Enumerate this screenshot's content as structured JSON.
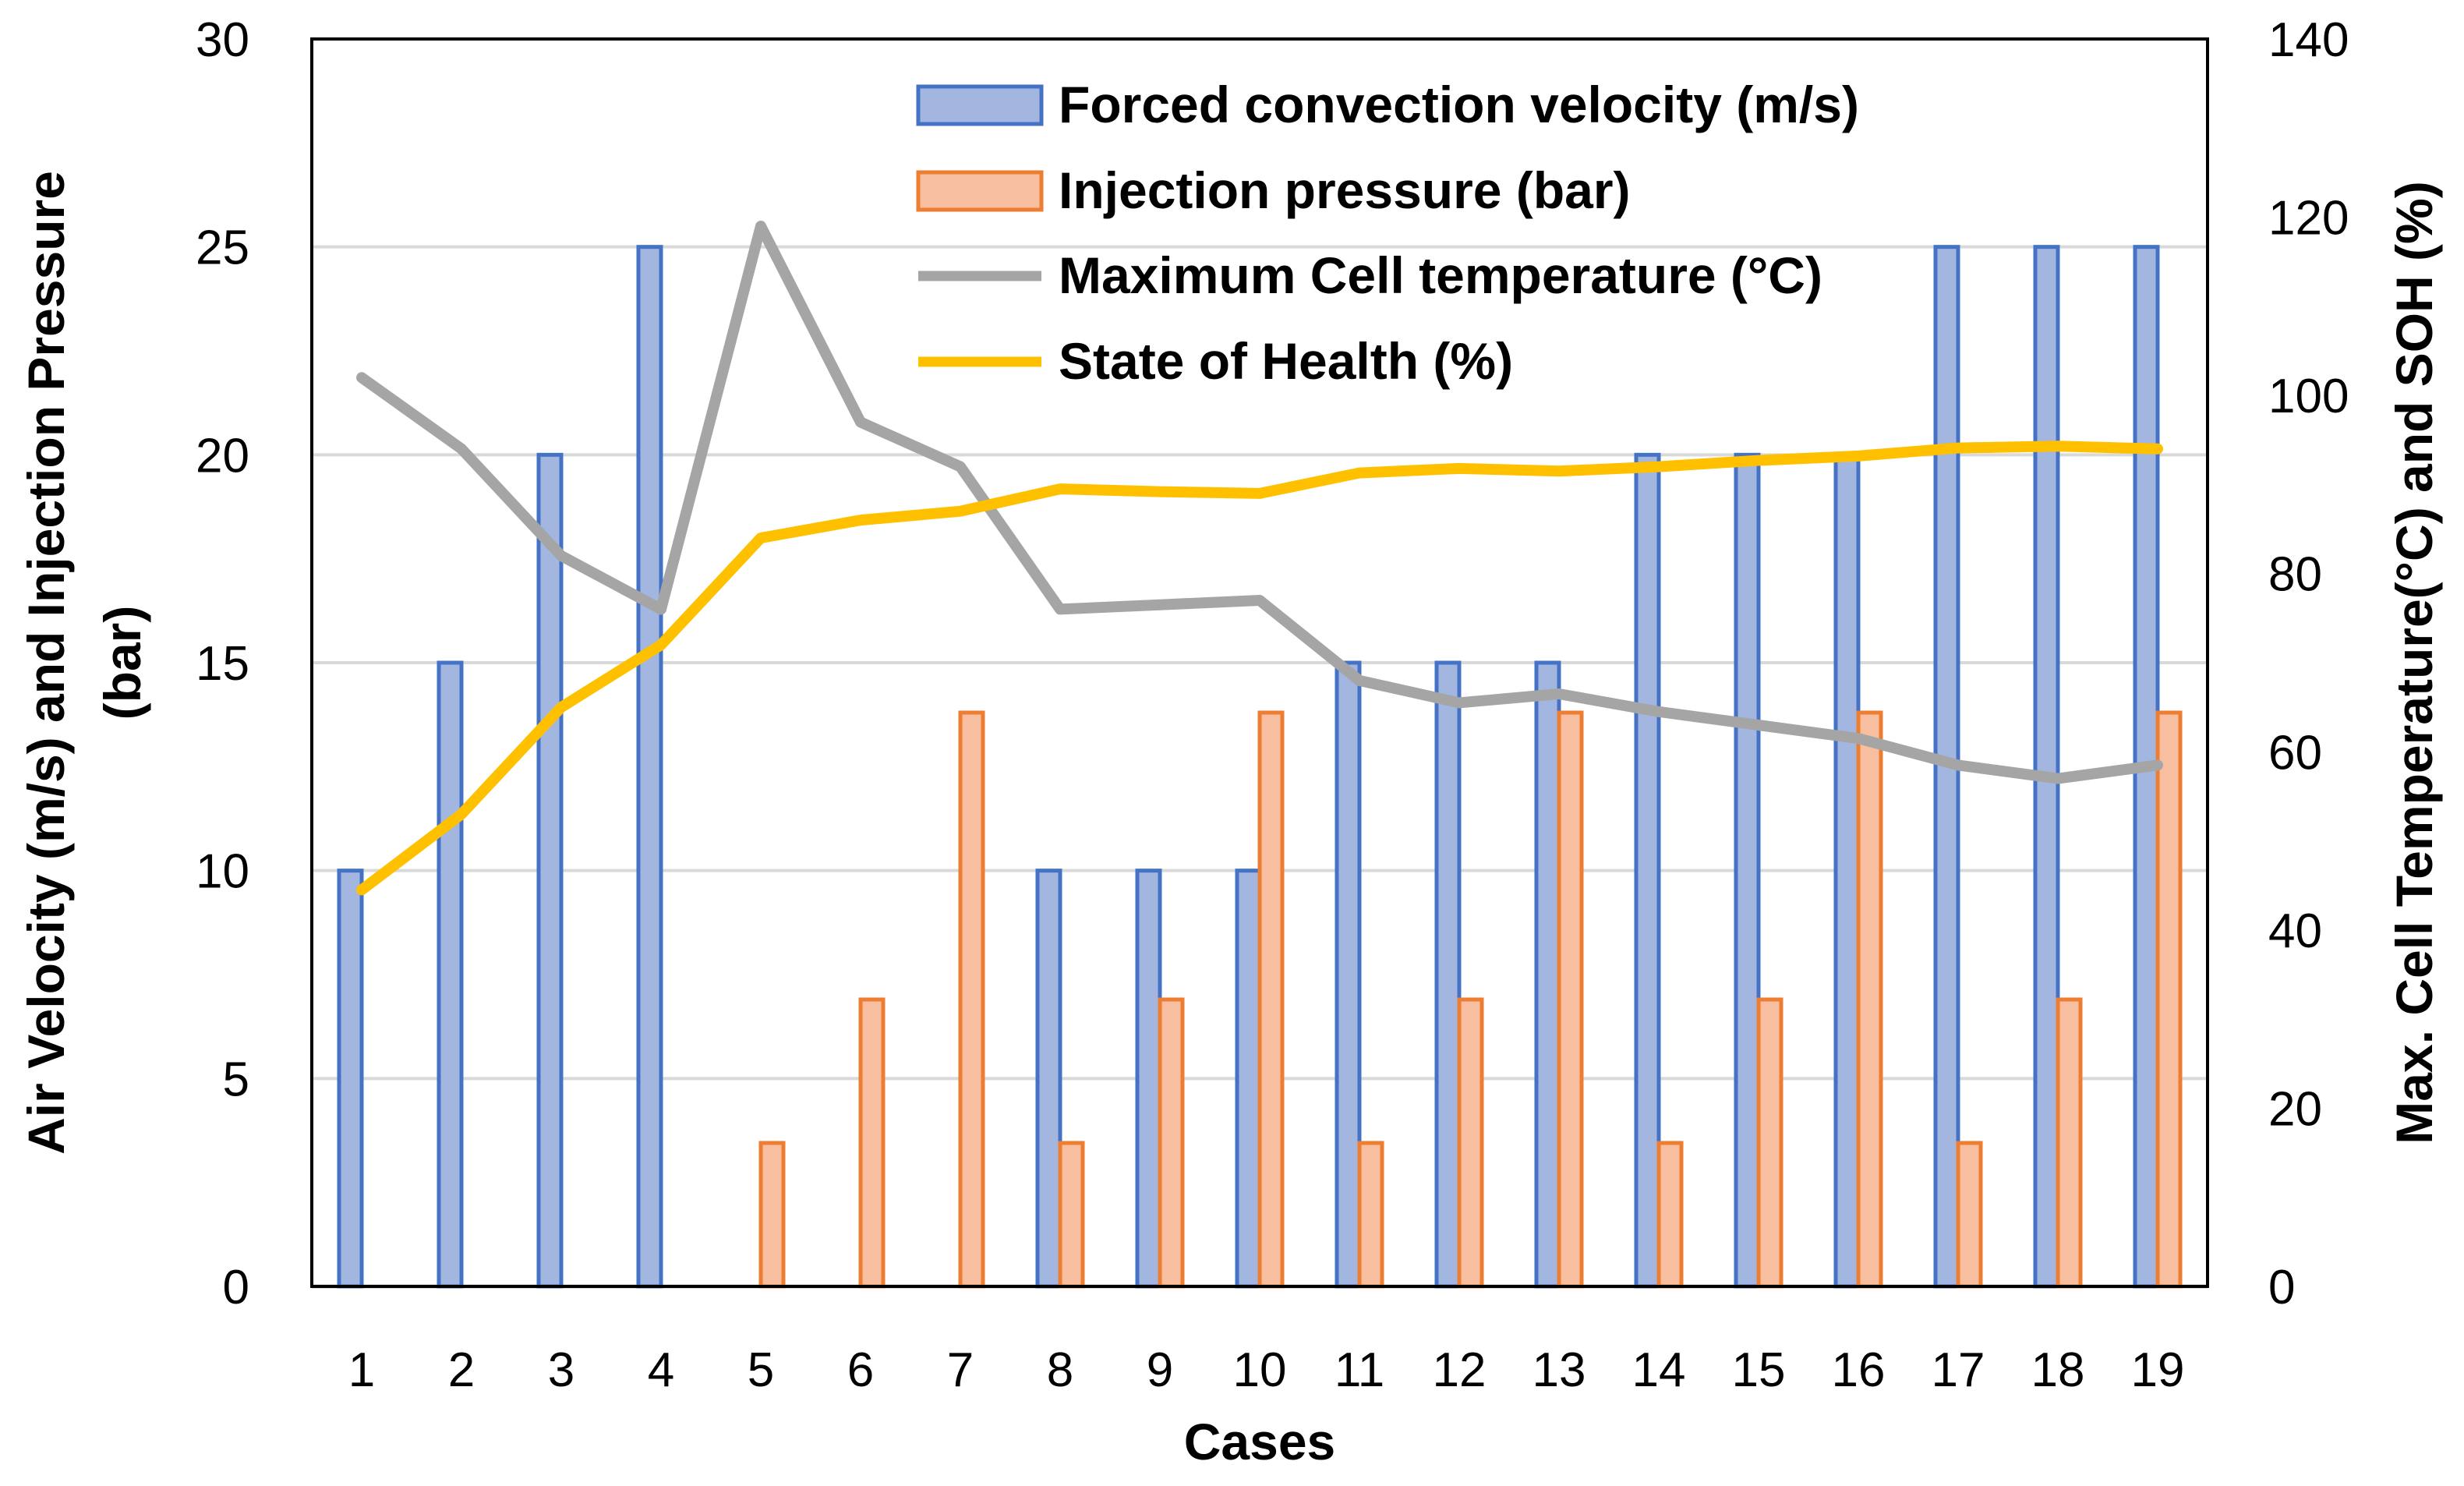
{
  "chart_data": {
    "type": "bar",
    "title": "",
    "xlabel": "Cases",
    "ylabel": "Air Velocity (m/s) and Injection Pressure (bar)",
    "ylabel_lines": [
      "Air Velocity (m/s) and Injection Pressure",
      "(bar)"
    ],
    "y2label": "Max. Cell Temperature(°C) and SOH (%)",
    "categories": [
      "1",
      "2",
      "3",
      "4",
      "5",
      "6",
      "7",
      "8",
      "9",
      "10",
      "11",
      "12",
      "13",
      "14",
      "15",
      "16",
      "17",
      "18",
      "19"
    ],
    "ylim": [
      0,
      30
    ],
    "yticks": [
      0,
      5,
      10,
      15,
      20,
      25,
      30
    ],
    "y2lim": [
      0,
      140
    ],
    "y2ticks": [
      0,
      20,
      40,
      60,
      80,
      100,
      120,
      140
    ],
    "grid": true,
    "legend_position": "top-right",
    "series": [
      {
        "name": "Forced convection velocity (m/s)",
        "kind": "bar",
        "axis": "left",
        "color": "#4472C4",
        "fill": "#a3b6e0",
        "values": [
          10,
          15,
          20,
          25,
          0,
          0,
          0,
          10,
          10,
          10,
          15,
          15,
          15,
          20,
          20,
          20,
          25,
          25,
          25
        ]
      },
      {
        "name": "Injection pressure (bar)",
        "kind": "bar",
        "axis": "left",
        "color": "#ED7D31",
        "fill": "#f8bea0",
        "values": [
          0,
          0,
          0,
          0,
          3.45,
          6.9,
          13.8,
          3.45,
          6.9,
          13.8,
          3.45,
          6.9,
          13.8,
          3.45,
          6.9,
          13.8,
          3.45,
          6.9,
          13.8
        ]
      },
      {
        "name": "Maximum Cell temperature (°C)",
        "kind": "line",
        "axis": "right",
        "color": "#A5A5A5",
        "values": [
          102,
          94,
          82,
          76,
          119,
          97,
          92,
          76,
          76.5,
          77,
          68,
          65.5,
          66.5,
          64.5,
          63,
          61.5,
          58.5,
          57,
          58.5
        ]
      },
      {
        "name": "State of Health (%)",
        "kind": "line",
        "axis": "right",
        "color": "#FFC000",
        "values": [
          44.5,
          53,
          65,
          72,
          84,
          86,
          87,
          89.5,
          89.2,
          89,
          91.3,
          91.8,
          91.5,
          92,
          92.7,
          93.2,
          94.1,
          94.3,
          94
        ]
      }
    ]
  }
}
